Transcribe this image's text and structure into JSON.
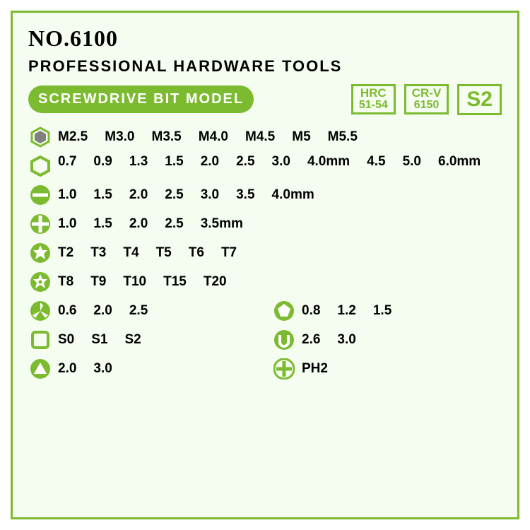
{
  "colors": {
    "accent": "#7CBB2F",
    "bg": "#F5FCF0",
    "text": "#000000",
    "gray": "#808080"
  },
  "header": {
    "no": "NO.6100",
    "subtitle": "PROFESSIONAL  HARDWARE  TOOLS",
    "pill": "SCREWDRIVE  BIT  MODEL",
    "spec1_l1": "HRC",
    "spec1_l2": "51-54",
    "spec2_l1": "CR-V",
    "spec2_l2": "6150",
    "spec3": "S2"
  },
  "rows": {
    "hex_solid": [
      "M2.5",
      "M3.0",
      "M3.5",
      "M4.0",
      "M4.5",
      "M5",
      "M5.5"
    ],
    "hex_hollow": [
      "0.7",
      "0.9",
      "1.3",
      "1.5",
      "2.0",
      "2.5",
      "3.0",
      "4.0mm",
      "4.5",
      "5.0",
      "6.0mm"
    ],
    "flat": [
      "1.0",
      "1.5",
      "2.0",
      "2.5",
      "3.0",
      "3.5",
      "4.0mm"
    ],
    "phillips": [
      "1.0",
      "1.5",
      "2.0",
      "2.5",
      "3.5mm"
    ],
    "torx": [
      "T2",
      "T3",
      "T4",
      "T5",
      "T6",
      "T7"
    ],
    "torx_sec": [
      "T8",
      "T9",
      "T10",
      "T15",
      "T20"
    ],
    "tri": [
      "0.6",
      "2.0",
      "2.5"
    ],
    "penta": [
      "0.8",
      "1.2",
      "1.5"
    ],
    "square": [
      "S0",
      "S1",
      "S2"
    ],
    "u_slot": [
      "2.6",
      "3.0"
    ],
    "triangle": [
      "2.0",
      "3.0"
    ],
    "ph_extra": [
      "PH2"
    ]
  }
}
